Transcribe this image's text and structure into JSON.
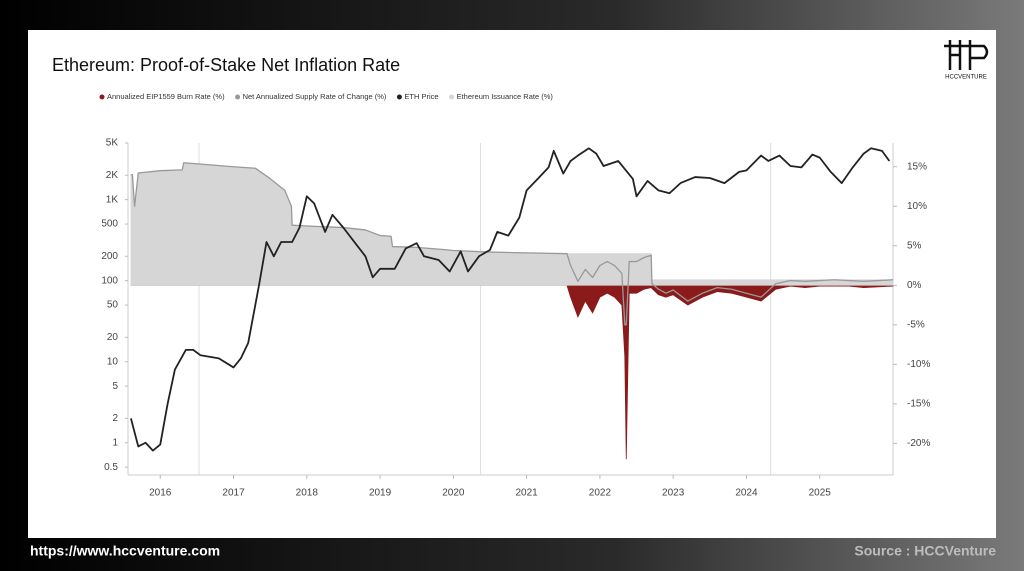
{
  "chart_data": {
    "type": "line",
    "title": "Ethereum: Proof-of-Stake Net Inflation Rate",
    "ylog": true,
    "xlim": [
      2015.56,
      2026.0
    ],
    "xticks": [
      2016,
      2017,
      2018,
      2019,
      2020,
      2021,
      2022,
      2023,
      2024,
      2025
    ],
    "ylim": [
      0.4,
      5000
    ],
    "yticks": [
      0.5,
      1,
      2,
      5,
      10,
      20,
      50,
      100,
      200,
      500,
      {
        "value": 1000,
        "label": "1K"
      },
      {
        "value": 2000,
        "label": "2K"
      },
      {
        "value": 5000,
        "label": "5K"
      }
    ],
    "y2lim": [
      -24,
      18
    ],
    "y2ticks": [
      {
        "value": -20,
        "label": "-20%"
      },
      {
        "value": -15,
        "label": "-15%"
      },
      {
        "value": -10,
        "label": "-10%"
      },
      {
        "value": -5,
        "label": "-5%"
      },
      {
        "value": 0,
        "label": "0%"
      },
      {
        "value": 5,
        "label": "5%"
      },
      {
        "value": 10,
        "label": "10%"
      },
      {
        "value": 15,
        "label": "15%"
      }
    ],
    "reference_lines_x": [
      2016.53,
      2020.37,
      2024.33
    ],
    "x": [
      2015.6,
      2015.62,
      2015.65,
      2015.7,
      2016.0,
      2016.3,
      2016.32,
      2016.6,
      2017.0,
      2017.3,
      2017.5,
      2017.7,
      2017.79,
      2017.8,
      2018.0,
      2018.5,
      2018.8,
      2019.0,
      2019.15,
      2019.17,
      2019.5,
      2019.9,
      2020.0,
      2020.5,
      2021.0,
      2021.55,
      2021.6,
      2021.7,
      2021.8,
      2021.9,
      2022.0,
      2022.1,
      2022.2,
      2022.3,
      2022.34,
      2022.36,
      2022.4,
      2022.5,
      2022.6,
      2022.7,
      2022.71,
      2022.8,
      2022.9,
      2023.0,
      2023.2,
      2023.4,
      2023.6,
      2023.8,
      2024.0,
      2024.2,
      2024.4,
      2024.6,
      2024.8,
      2025.0,
      2025.2,
      2025.4,
      2025.6,
      2025.8,
      2026.0
    ],
    "series": [
      {
        "name": "Annualized EIP1559 Burn Rate (%)",
        "color": "#8b1a1a",
        "kind": "area",
        "axis": "y2",
        "values": [
          0,
          0,
          0,
          0,
          0,
          0,
          0,
          0,
          0,
          0,
          0,
          0,
          0,
          0,
          0,
          0,
          0,
          0,
          0,
          0,
          0,
          0,
          0,
          0,
          0,
          0,
          -1.5,
          -4,
          -2,
          -3.5,
          -1.5,
          -1,
          -1.5,
          -2.5,
          -9,
          -22,
          -1,
          -1,
          -0.5,
          -0.3,
          -0.4,
          -1.2,
          -1.5,
          -1.2,
          -2.5,
          -1.5,
          -0.8,
          -1,
          -1.5,
          -2,
          -0.5,
          -0.1,
          -0.3,
          -0.1,
          -0.1,
          -0.1,
          -0.3,
          -0.2,
          -0.1
        ]
      },
      {
        "name": "Net Annualized Supply Rate of Change (%)",
        "color": "#999999",
        "kind": "line",
        "axis": "y2",
        "values": [
          14,
          14,
          10,
          14.2,
          14.5,
          14.6,
          15.5,
          15.3,
          15,
          14.8,
          13.5,
          12,
          10,
          7.6,
          7.5,
          7.3,
          7,
          6.3,
          6.2,
          4.9,
          4.8,
          4.5,
          4.4,
          4.2,
          4.1,
          4.0,
          2.5,
          0.5,
          2,
          1,
          2.5,
          3,
          2.5,
          1.5,
          -5,
          -5,
          3,
          3,
          3.5,
          3.8,
          0.2,
          -0.5,
          -1,
          -0.6,
          -2,
          -1,
          -0.3,
          -0.5,
          -1,
          -1.5,
          0.2,
          0.6,
          0.5,
          0.6,
          0.7,
          0.6,
          0.5,
          0.6,
          0.7
        ]
      },
      {
        "name": "ETH Price",
        "color": "#222222",
        "kind": "line",
        "axis": "y",
        "x": [
          2015.6,
          2015.7,
          2015.8,
          2015.9,
          2016.0,
          2016.1,
          2016.2,
          2016.35,
          2016.45,
          2016.55,
          2016.8,
          2017.0,
          2017.1,
          2017.2,
          2017.35,
          2017.45,
          2017.55,
          2017.65,
          2017.8,
          2017.9,
          2018.0,
          2018.1,
          2018.25,
          2018.35,
          2018.5,
          2018.65,
          2018.8,
          2018.9,
          2019.0,
          2019.2,
          2019.35,
          2019.5,
          2019.6,
          2019.8,
          2019.95,
          2020.1,
          2020.2,
          2020.35,
          2020.5,
          2020.6,
          2020.75,
          2020.9,
          2021.0,
          2021.15,
          2021.3,
          2021.37,
          2021.5,
          2021.6,
          2021.7,
          2021.85,
          2021.95,
          2022.05,
          2022.25,
          2022.45,
          2022.5,
          2022.65,
          2022.8,
          2022.95,
          2023.1,
          2023.3,
          2023.5,
          2023.7,
          2023.9,
          2024.0,
          2024.2,
          2024.3,
          2024.45,
          2024.6,
          2024.75,
          2024.9,
          2025.0,
          2025.15,
          2025.3,
          2025.45,
          2025.6,
          2025.7,
          2025.85,
          2025.95
        ],
        "values": [
          2.0,
          0.9,
          1.0,
          0.8,
          0.95,
          3,
          8,
          14,
          14,
          12,
          11,
          8.5,
          11,
          17,
          90,
          300,
          200,
          300,
          300,
          450,
          1100,
          900,
          400,
          650,
          450,
          300,
          200,
          110,
          140,
          140,
          250,
          290,
          200,
          180,
          130,
          230,
          130,
          200,
          240,
          400,
          360,
          600,
          1300,
          1800,
          2500,
          4000,
          2100,
          3000,
          3500,
          4300,
          3700,
          2600,
          3000,
          1800,
          1100,
          1700,
          1300,
          1200,
          1600,
          1900,
          1850,
          1600,
          2200,
          2300,
          3500,
          3000,
          3500,
          2600,
          2500,
          3600,
          3300,
          2200,
          1600,
          2500,
          3700,
          4300,
          4000,
          3000
        ]
      },
      {
        "name": "Ethereum Issuance Rate (%)",
        "color": "#d6d6d6",
        "kind": "area",
        "axis": "y2",
        "values": [
          14,
          14,
          10,
          14.2,
          14.5,
          14.6,
          15.5,
          15.3,
          15,
          14.8,
          13.5,
          12,
          10,
          7.6,
          7.5,
          7.3,
          7,
          6.3,
          6.2,
          4.9,
          4.8,
          4.5,
          4.4,
          4.2,
          4.1,
          4.0,
          4.0,
          4.0,
          4.0,
          4.0,
          4.0,
          4.0,
          4.0,
          4.0,
          4.0,
          4.0,
          4.0,
          4.0,
          4.0,
          4.0,
          0.7,
          0.7,
          0.7,
          0.7,
          0.7,
          0.7,
          0.7,
          0.7,
          0.7,
          0.7,
          0.7,
          0.7,
          0.7,
          0.7,
          0.7,
          0.7,
          0.7,
          0.7,
          0.7
        ]
      }
    ]
  },
  "logo": "HCCVENTURE",
  "footer": {
    "url": "https://www.hccventure.com",
    "source": "Source : HCCVenture"
  }
}
